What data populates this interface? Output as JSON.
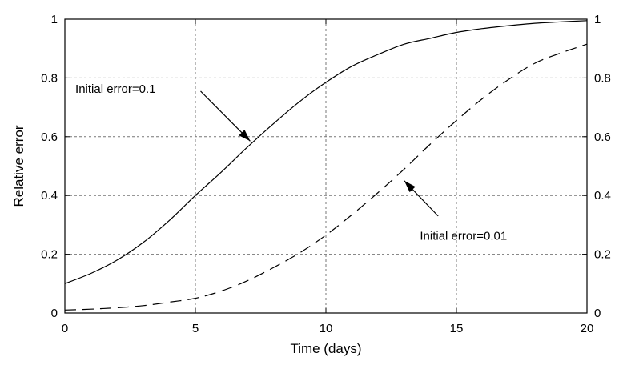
{
  "chart_data": {
    "type": "line",
    "title": "",
    "xlabel": "Time (days)",
    "ylabel": "Relative error",
    "xlim": [
      0,
      20
    ],
    "ylim": [
      0,
      1
    ],
    "xticks": [
      0,
      5,
      10,
      15,
      20
    ],
    "yticks": [
      0,
      0.2,
      0.4,
      0.6,
      0.8,
      1
    ],
    "ytick_labels": [
      "0",
      "0.2",
      "0.4",
      "0.6",
      "0.8",
      "1"
    ],
    "right_axis_labels": true,
    "grid": true,
    "series": [
      {
        "style": "solid",
        "x": [
          0,
          1,
          2,
          3,
          4,
          5,
          6,
          7,
          8,
          9,
          10,
          11,
          12,
          13,
          14,
          15,
          16,
          17,
          18,
          19,
          20
        ],
        "y": [
          0.1,
          0.135,
          0.18,
          0.24,
          0.315,
          0.4,
          0.48,
          0.565,
          0.645,
          0.72,
          0.785,
          0.84,
          0.88,
          0.915,
          0.935,
          0.955,
          0.968,
          0.978,
          0.986,
          0.991,
          0.995
        ]
      },
      {
        "style": "dashed",
        "x": [
          0,
          1,
          2,
          3,
          4,
          5,
          6,
          7,
          8,
          9,
          10,
          11,
          12,
          13,
          14,
          15,
          16,
          17,
          18,
          19,
          20
        ],
        "y": [
          0.01,
          0.013,
          0.018,
          0.025,
          0.037,
          0.05,
          0.075,
          0.11,
          0.155,
          0.205,
          0.265,
          0.335,
          0.41,
          0.49,
          0.575,
          0.655,
          0.73,
          0.795,
          0.85,
          0.885,
          0.915
        ]
      }
    ],
    "annotations": [
      {
        "text": "Initial error=0.1",
        "label_pos": [
          0.4,
          0.75
        ],
        "arrow_from": [
          5.2,
          0.755
        ],
        "arrow_to": [
          7.1,
          0.585
        ]
      },
      {
        "text": "Initial error=0.01",
        "label_pos": [
          13.6,
          0.25
        ],
        "arrow_from": [
          14.3,
          0.33
        ],
        "arrow_to": [
          13.0,
          0.45
        ]
      }
    ]
  }
}
